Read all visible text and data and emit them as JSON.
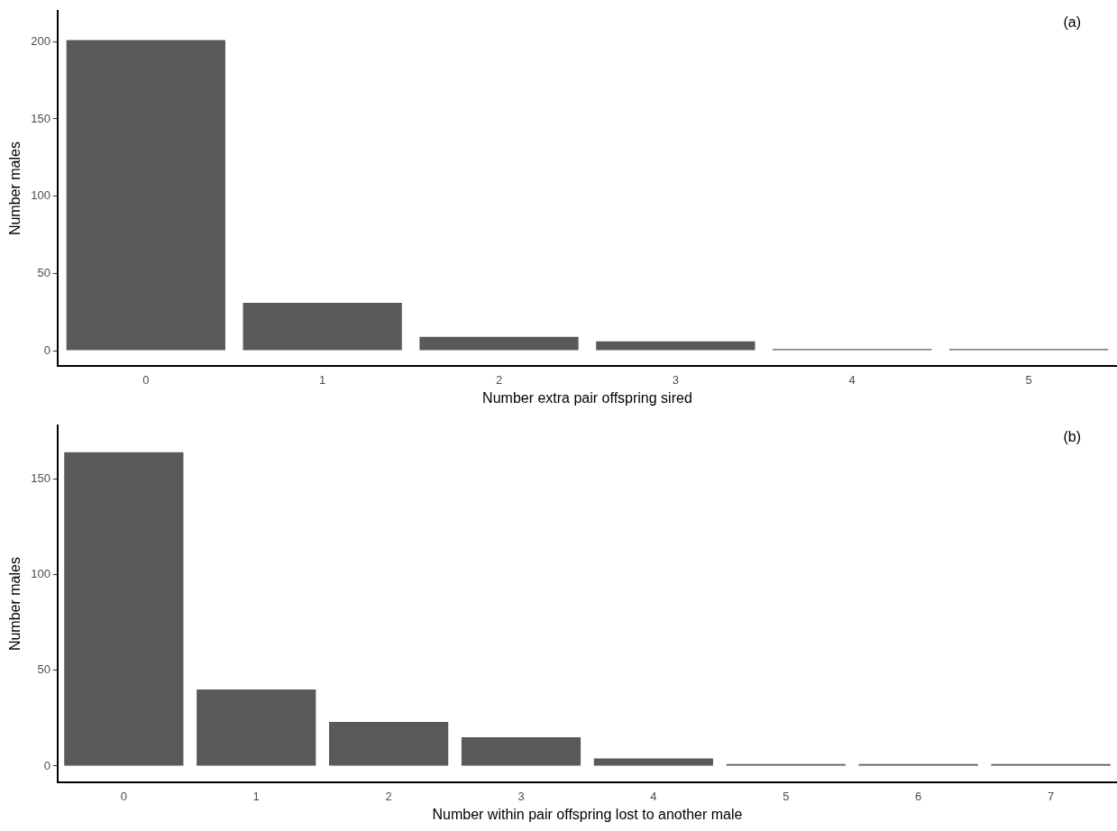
{
  "chart_data": [
    {
      "type": "bar",
      "categories": [
        "0",
        "1",
        "2",
        "3",
        "4",
        "5"
      ],
      "values": [
        201,
        31,
        9,
        6,
        1,
        1
      ],
      "color": "#595959",
      "xlabel": "Number extra pair offspring sired",
      "ylabel": "Number males",
      "ylim": [
        -10,
        220
      ],
      "yticks": [
        0,
        50,
        100,
        150,
        200
      ],
      "grid": false,
      "legend": false,
      "annotations": [
        "(a)"
      ]
    },
    {
      "type": "bar",
      "categories": [
        "0",
        "1",
        "2",
        "3",
        "4",
        "5",
        "6",
        "7"
      ],
      "values": [
        164,
        40,
        23,
        15,
        4,
        1,
        1,
        1
      ],
      "color": "#595959",
      "xlabel": "Number within pair offspring lost to another male",
      "ylabel": "Number males",
      "ylim": [
        -8.6,
        178
      ],
      "yticks": [
        0,
        50,
        100,
        150
      ],
      "grid": false,
      "legend": false,
      "annotations": [
        "(b)"
      ]
    }
  ]
}
